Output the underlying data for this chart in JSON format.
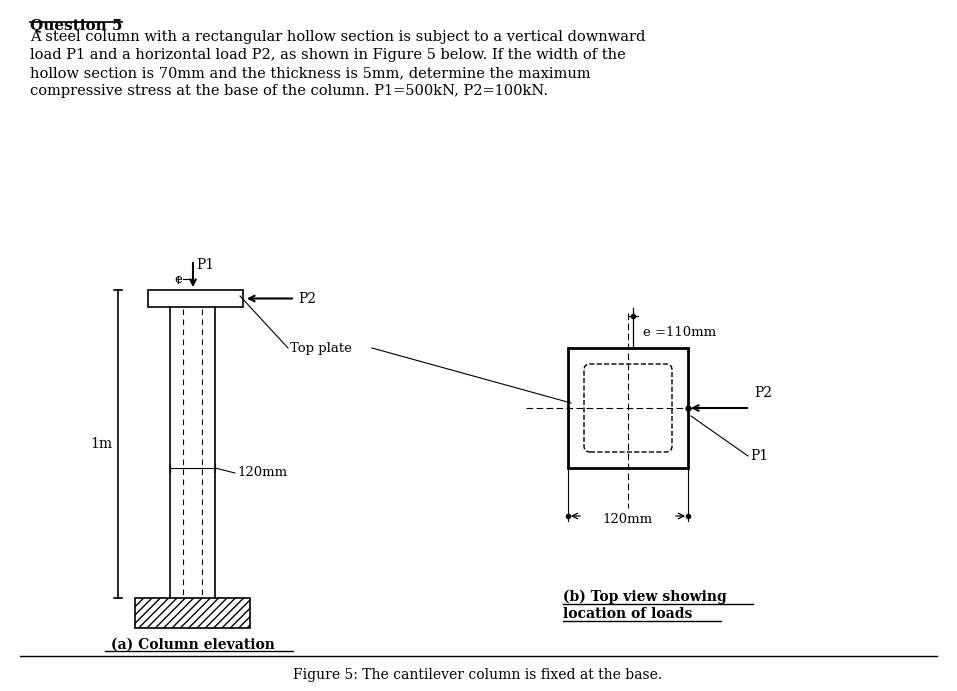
{
  "title_text": "Question 5",
  "body_lines": [
    "A steel column with a rectangular hollow section is subject to a vertical downward",
    "load P1 and a horizontal load P2, as shown in Figure 5 below. If the width of the",
    "hollow section is 70mm and the thickness is 5mm, determine the maximum",
    "compressive stress at the base of the column. P1=500kN, P2=100kN."
  ],
  "figure_caption": "Figure 5: The cantilever column is fixed at the base.",
  "label_a": "(a) Column elevation",
  "label_b_line1": "(b) Top view showing",
  "label_b_line2": "location of loads",
  "label_1m": "1m",
  "label_120mm_elev": "120mm",
  "label_120mm_top": "120mm",
  "label_e": "e",
  "label_e_top": "e =110mm",
  "label_P1": "P1",
  "label_P2": "P2",
  "label_top_plate": "Top plate",
  "bg_color": "#ffffff",
  "line_color": "#000000"
}
